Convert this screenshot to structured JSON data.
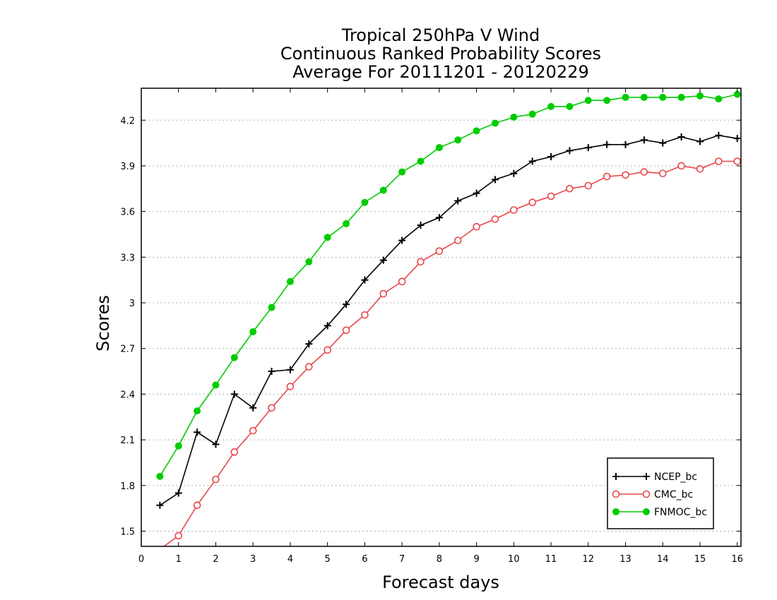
{
  "chart_data": {
    "type": "line",
    "title": [
      "Tropical 250hPa V Wind",
      "Continuous Ranked Probability Scores",
      "Average For 20111201 - 20120229"
    ],
    "xlabel": "Forecast days",
    "ylabel": "Scores",
    "xlim": [
      0,
      16.1
    ],
    "ylim": [
      1.4,
      4.41
    ],
    "xticks": [
      0,
      1,
      2,
      3,
      4,
      5,
      6,
      7,
      8,
      9,
      10,
      11,
      12,
      13,
      14,
      15,
      16
    ],
    "xtick_labels": [
      "0",
      "1",
      "2",
      "3",
      "4",
      "5",
      "6",
      "7",
      "8",
      "9",
      "10",
      "11",
      "12",
      "13",
      "14",
      "15",
      "16"
    ],
    "yticks": [
      1.5,
      1.8,
      2.1,
      2.4,
      2.7,
      3.0,
      3.3,
      3.6,
      3.9,
      4.2
    ],
    "ytick_labels": [
      "1.5",
      "1.8",
      "2.1",
      "2.4",
      "2.7",
      "3",
      "3.3",
      "3.6",
      "3.9",
      "4.2"
    ],
    "grid": "horizontal-dotted",
    "legend_position": "bottom-right",
    "x": [
      0.5,
      1,
      1.5,
      2,
      2.5,
      3,
      3.5,
      4,
      4.5,
      5,
      5.5,
      6,
      6.5,
      7,
      7.5,
      8,
      8.5,
      9,
      9.5,
      10,
      10.5,
      11,
      11.5,
      12,
      12.5,
      13,
      13.5,
      14,
      14.5,
      15,
      15.5,
      16
    ],
    "series": [
      {
        "name": "NCEP_bc",
        "color": "#000000",
        "marker": "plus",
        "values": [
          1.67,
          1.75,
          2.15,
          2.07,
          2.4,
          2.31,
          2.55,
          2.56,
          2.73,
          2.85,
          2.99,
          3.15,
          3.28,
          3.41,
          3.51,
          3.56,
          3.67,
          3.72,
          3.81,
          3.85,
          3.93,
          3.96,
          4.0,
          4.02,
          4.04,
          4.04,
          4.07,
          4.05,
          4.09,
          4.06,
          4.1,
          4.08
        ]
      },
      {
        "name": "CMC_bc",
        "color": "#e8474a",
        "marker": "open-circle",
        "values": [
          1.38,
          1.47,
          1.67,
          1.84,
          2.02,
          2.16,
          2.31,
          2.45,
          2.58,
          2.69,
          2.82,
          2.92,
          3.06,
          3.14,
          3.27,
          3.34,
          3.41,
          3.5,
          3.55,
          3.61,
          3.66,
          3.7,
          3.75,
          3.77,
          3.83,
          3.84,
          3.86,
          3.85,
          3.9,
          3.88,
          3.93,
          3.93
        ]
      },
      {
        "name": "FNMOC_bc",
        "color": "#00cc00",
        "marker": "filled-circle",
        "values": [
          1.86,
          2.06,
          2.29,
          2.46,
          2.64,
          2.81,
          2.97,
          3.14,
          3.27,
          3.43,
          3.52,
          3.66,
          3.74,
          3.86,
          3.93,
          4.02,
          4.07,
          4.13,
          4.18,
          4.22,
          4.24,
          4.29,
          4.29,
          4.33,
          4.33,
          4.35,
          4.35,
          4.35,
          4.35,
          4.36,
          4.34,
          4.37
        ]
      }
    ]
  }
}
